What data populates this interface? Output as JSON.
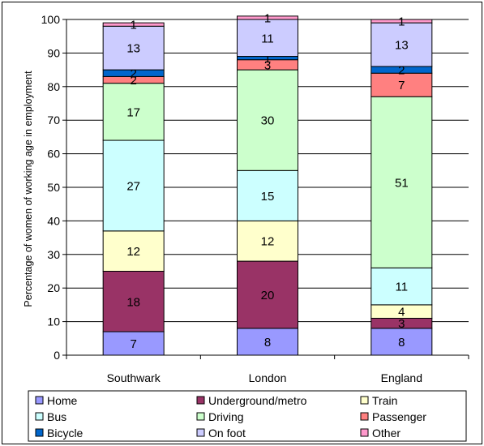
{
  "chart_data": {
    "type": "bar",
    "stacked": true,
    "title": "",
    "xlabel": "",
    "ylabel": "Percentage of women of working age in employment",
    "ylim": [
      0,
      100
    ],
    "yticks": [
      0,
      10,
      20,
      30,
      40,
      50,
      60,
      70,
      80,
      90,
      100
    ],
    "grid": true,
    "legend_position": "bottom",
    "categories": [
      "Southwark",
      "London",
      "England"
    ],
    "series": [
      {
        "name": "Home",
        "color": "#9999ff",
        "values": [
          7,
          8,
          8
        ],
        "labels": [
          "7",
          "8",
          "8"
        ]
      },
      {
        "name": "Underground/metro",
        "color": "#993366",
        "values": [
          18,
          20,
          3
        ],
        "labels": [
          "18",
          "20",
          "3"
        ]
      },
      {
        "name": "Train",
        "color": "#ffffcc",
        "values": [
          12,
          12,
          4
        ],
        "labels": [
          "12",
          "12",
          "4"
        ]
      },
      {
        "name": "Bus",
        "color": "#ccffff",
        "values": [
          27,
          15,
          11
        ],
        "labels": [
          "27",
          "15",
          "11"
        ]
      },
      {
        "name": "Driving",
        "color": "#ccffcc",
        "values": [
          17,
          30,
          51
        ],
        "labels": [
          "17",
          "30",
          "51"
        ]
      },
      {
        "name": "Passenger",
        "color": "#ff8080",
        "values": [
          2,
          3,
          7
        ],
        "labels": [
          "2",
          "3",
          "7"
        ]
      },
      {
        "name": "Bicycle",
        "color": "#0066cc",
        "values": [
          2,
          1,
          2
        ],
        "labels": [
          "2",
          "1",
          "2"
        ]
      },
      {
        "name": "On foot",
        "color": "#ccccff",
        "values": [
          13,
          11,
          13
        ],
        "labels": [
          "13",
          "11",
          "13"
        ]
      },
      {
        "name": "Other",
        "color": "#ff99cc",
        "values": [
          1,
          1,
          1
        ],
        "labels": [
          "1",
          "1",
          "1"
        ]
      }
    ]
  }
}
